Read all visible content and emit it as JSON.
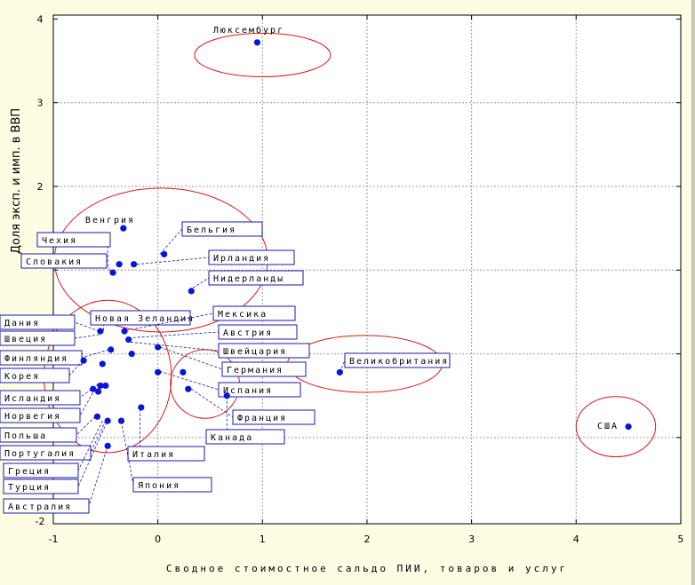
{
  "chart_data": {
    "type": "scatter",
    "xlabel": "Сводное стоимостное сальдо ПИИ, товаров и услуг",
    "ylabel": "Доля эксп. и имп. в ВВП",
    "xlim": [
      -1,
      5
    ],
    "ylim": [
      -2,
      4
    ],
    "xticks": [
      -1,
      0,
      1,
      2,
      3,
      4,
      5
    ],
    "yticks": [
      -2,
      2,
      3,
      4
    ],
    "grid": true,
    "colors": {
      "points": "#0a14d6",
      "ellipses": "#d81818",
      "label_border": "#1a1aa8",
      "background": "#fdfde3",
      "plot_bg": "#ffffff"
    },
    "points": [
      {
        "label": "Люксембург",
        "x": 0.95,
        "y": 3.72
      },
      {
        "label": "Венгрия",
        "x": -0.33,
        "y": 1.5
      },
      {
        "label": "Чехия",
        "x": -0.37,
        "y": 1.07
      },
      {
        "label": "Словакия",
        "x": -0.43,
        "y": 0.97
      },
      {
        "label": "",
        "x": -0.23,
        "y": 1.07
      },
      {
        "label": "Бельгия",
        "x": 0.06,
        "y": 1.19
      },
      {
        "label": "Нидерланды",
        "x": 0.32,
        "y": 0.75
      },
      {
        "label": "Новая Зеландия",
        "x": -0.55,
        "y": 0.27
      },
      {
        "label": "",
        "x": -0.32,
        "y": 0.27
      },
      {
        "label": "",
        "x": -0.28,
        "y": 0.17
      },
      {
        "label": "",
        "x": -0.45,
        "y": 0.05
      },
      {
        "label": "",
        "x": -0.25,
        "y": 0.0
      },
      {
        "label": "",
        "x": 0.0,
        "y": 0.08
      },
      {
        "label": "",
        "x": -0.53,
        "y": -0.12
      },
      {
        "label": "",
        "x": -0.71,
        "y": -0.08
      },
      {
        "label": "",
        "x": 0.0,
        "y": -0.22
      },
      {
        "label": "Германия",
        "x": 0.24,
        "y": -0.22
      },
      {
        "label": "",
        "x": -0.5,
        "y": -0.38
      },
      {
        "label": "",
        "x": -0.55,
        "y": -0.38
      },
      {
        "label": "",
        "x": -0.62,
        "y": -0.42
      },
      {
        "label": "",
        "x": -0.57,
        "y": -0.45
      },
      {
        "label": "Испания",
        "x": 0.29,
        "y": -0.42
      },
      {
        "label": "Франция",
        "x": 0.66,
        "y": -0.5
      },
      {
        "label": "",
        "x": -0.16,
        "y": -0.64
      },
      {
        "label": "",
        "x": -0.58,
        "y": -0.75
      },
      {
        "label": "",
        "x": -0.48,
        "y": -0.8
      },
      {
        "label": "",
        "x": -0.35,
        "y": -0.8
      },
      {
        "label": "Япония",
        "x": -0.48,
        "y": -1.1
      },
      {
        "label": "Великобритания",
        "x": 1.74,
        "y": -0.22
      },
      {
        "label": "США",
        "x": 4.5,
        "y": -0.87
      }
    ],
    "label_boxes": [
      {
        "text": "Чехия",
        "px": -0.48,
        "py": 1.1
      },
      {
        "text": "Словакия",
        "px": -0.46,
        "py": 0.99
      },
      {
        "text": "Бельгия",
        "px": 0.02,
        "py": 1.19
      },
      {
        "text": "Ирландия",
        "px": -0.2,
        "py": 1.07
      },
      {
        "text": "Нидерланды",
        "px": 0.3,
        "py": 0.76
      },
      {
        "text": "Новая Зеландия",
        "px": -0.52,
        "py": 0.28
      },
      {
        "text": "Мексика",
        "px": -0.3,
        "py": 0.28
      },
      {
        "text": "Дания",
        "px": -0.56,
        "py": 0.27
      },
      {
        "text": "Швеция",
        "px": -0.56,
        "py": 0.23
      },
      {
        "text": "Австрия",
        "px": -0.28,
        "py": 0.19
      },
      {
        "text": "Швейцария",
        "px": -0.26,
        "py": 0.14
      },
      {
        "text": "Финляндия",
        "px": -0.47,
        "py": 0.05
      },
      {
        "text": "Германия",
        "px": 0.02,
        "py": 0.08
      },
      {
        "text": "Корея",
        "px": -0.72,
        "py": -0.08
      },
      {
        "text": "Исландия",
        "px": -0.57,
        "py": -0.36
      },
      {
        "text": "Испания",
        "px": 0.02,
        "py": -0.21
      },
      {
        "text": "Норвегия",
        "px": -0.6,
        "py": -0.42
      },
      {
        "text": "Франция",
        "px": 0.32,
        "py": -0.42
      },
      {
        "text": "Канада",
        "px": 0.66,
        "py": -0.51
      },
      {
        "text": "Польша",
        "px": -0.6,
        "py": -0.75
      },
      {
        "text": "Португалия",
        "px": -0.5,
        "py": -0.8
      },
      {
        "text": "Италия",
        "px": -0.17,
        "py": -0.66
      },
      {
        "text": "Греция",
        "px": -0.53,
        "py": -0.8
      },
      {
        "text": "Турция",
        "px": -0.49,
        "py": -0.82
      },
      {
        "text": "Австралия",
        "px": -0.48,
        "py": -1.1
      },
      {
        "text": "Япония",
        "px": -0.35,
        "py": -0.81
      }
    ],
    "free_labels": [
      {
        "text": "Люксембург"
      },
      {
        "text": "Венгрия"
      },
      {
        "text": "Великобритания"
      },
      {
        "text": "США"
      }
    ],
    "ellipses": [
      {
        "cx": 1.0,
        "cy": 3.57,
        "rx": 0.65,
        "ry": 0.26
      },
      {
        "cx": 0.03,
        "cy": 1.12,
        "rx": 1.02,
        "ry": 0.86
      },
      {
        "cx": -0.48,
        "cy": -0.27,
        "rx": 0.61,
        "ry": 0.91
      },
      {
        "cx": 0.45,
        "cy": -0.36,
        "rx": 0.33,
        "ry": 0.41
      },
      {
        "cx": 1.98,
        "cy": -0.12,
        "rx": 0.74,
        "ry": 0.34
      },
      {
        "cx": 4.38,
        "cy": -0.87,
        "rx": 0.38,
        "ry": 0.36
      }
    ]
  }
}
